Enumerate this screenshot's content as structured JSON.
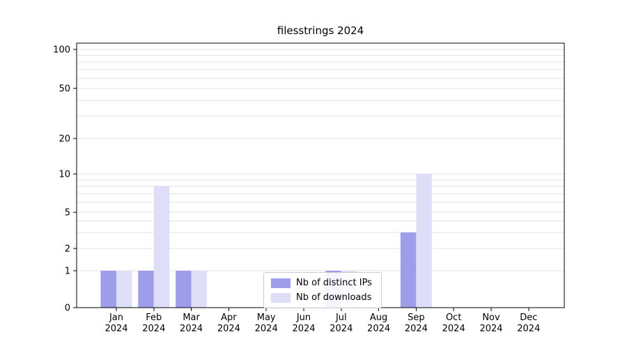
{
  "chart_data": {
    "type": "bar",
    "title": "filesstrings 2024",
    "x_tick_labels": [
      [
        "Jan",
        "2024"
      ],
      [
        "Feb",
        "2024"
      ],
      [
        "Mar",
        "2024"
      ],
      [
        "Apr",
        "2024"
      ],
      [
        "May",
        "2024"
      ],
      [
        "Jun",
        "2024"
      ],
      [
        "Jul",
        "2024"
      ],
      [
        "Aug",
        "2024"
      ],
      [
        "Sep",
        "2024"
      ],
      [
        "Oct",
        "2024"
      ],
      [
        "Nov",
        "2024"
      ],
      [
        "Dec",
        "2024"
      ]
    ],
    "series": [
      {
        "name": "Nb of distinct IPs",
        "color": "#9d9dea",
        "values": [
          1,
          1,
          1,
          0,
          0,
          0,
          1,
          0,
          3,
          0,
          0,
          0
        ]
      },
      {
        "name": "Nb of downloads",
        "color": "#dedef8",
        "values": [
          1,
          8,
          1,
          0,
          0,
          0,
          1,
          0,
          10,
          0,
          0,
          0
        ]
      }
    ],
    "y_axis": {
      "scale": "symlog",
      "range": [
        0,
        100
      ],
      "ticks": [
        0,
        1,
        2,
        5,
        10,
        20,
        50,
        100
      ],
      "gridlines": [
        1,
        2,
        3,
        4,
        5,
        6,
        7,
        8,
        9,
        10,
        20,
        30,
        40,
        50,
        60,
        70,
        80,
        90,
        100
      ]
    },
    "legend": {
      "position": "lower-center"
    },
    "style": {
      "grid_color": "#e3e3e3",
      "axis_color": "#000000",
      "text_color": "#000000",
      "background": "#ffffff"
    }
  }
}
